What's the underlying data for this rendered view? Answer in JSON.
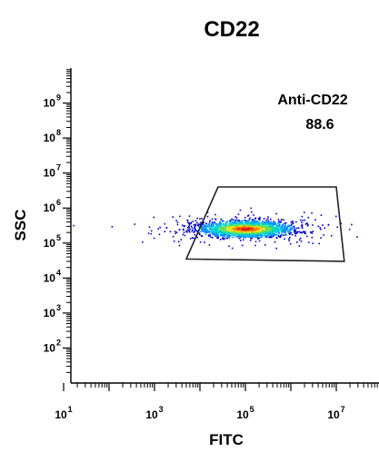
{
  "chart_data": {
    "type": "scatter",
    "title": "CD22",
    "xlabel": "FITC",
    "ylabel": "SSC",
    "xscale": "log",
    "yscale": "log",
    "xlim": [
      1,
      100000000
    ],
    "ylim": [
      10,
      10000000000
    ],
    "x_ticks": [
      {
        "base": "10",
        "exp": "1",
        "value": 10
      },
      {
        "base": "10",
        "exp": "3",
        "value": 1000
      },
      {
        "base": "10",
        "exp": "5",
        "value": 100000
      },
      {
        "base": "10",
        "exp": "7",
        "value": 10000000
      }
    ],
    "y_ticks": [
      {
        "base": "10",
        "exp": "2",
        "value": 100
      },
      {
        "base": "10",
        "exp": "3",
        "value": 1000
      },
      {
        "base": "10",
        "exp": "4",
        "value": 10000
      },
      {
        "base": "10",
        "exp": "5",
        "value": 100000
      },
      {
        "base": "10",
        "exp": "6",
        "value": 1000000
      },
      {
        "base": "10",
        "exp": "7",
        "value": 10000000
      },
      {
        "base": "10",
        "exp": "8",
        "value": 100000000
      },
      {
        "base": "10",
        "exp": "9",
        "value": 1000000000
      }
    ],
    "population": {
      "center": [
        100000,
        250000
      ],
      "x_range": [
        1000,
        5000000
      ],
      "y_range": [
        100000,
        600000
      ],
      "points_shown": 2200,
      "density_colors": [
        "#0000cc",
        "#0090ff",
        "#00d0d0",
        "#60e060",
        "#f0e020",
        "#ff8000",
        "#e02000"
      ]
    },
    "gate": {
      "name": "Anti-CD22",
      "value": "88.6",
      "vertices": [
        [
          5000,
          35000
        ],
        [
          25000,
          4000000
        ],
        [
          10000000,
          4000000
        ],
        [
          15000000,
          30000
        ]
      ],
      "label_position": "top-right"
    },
    "grid": false,
    "legend": "none"
  }
}
